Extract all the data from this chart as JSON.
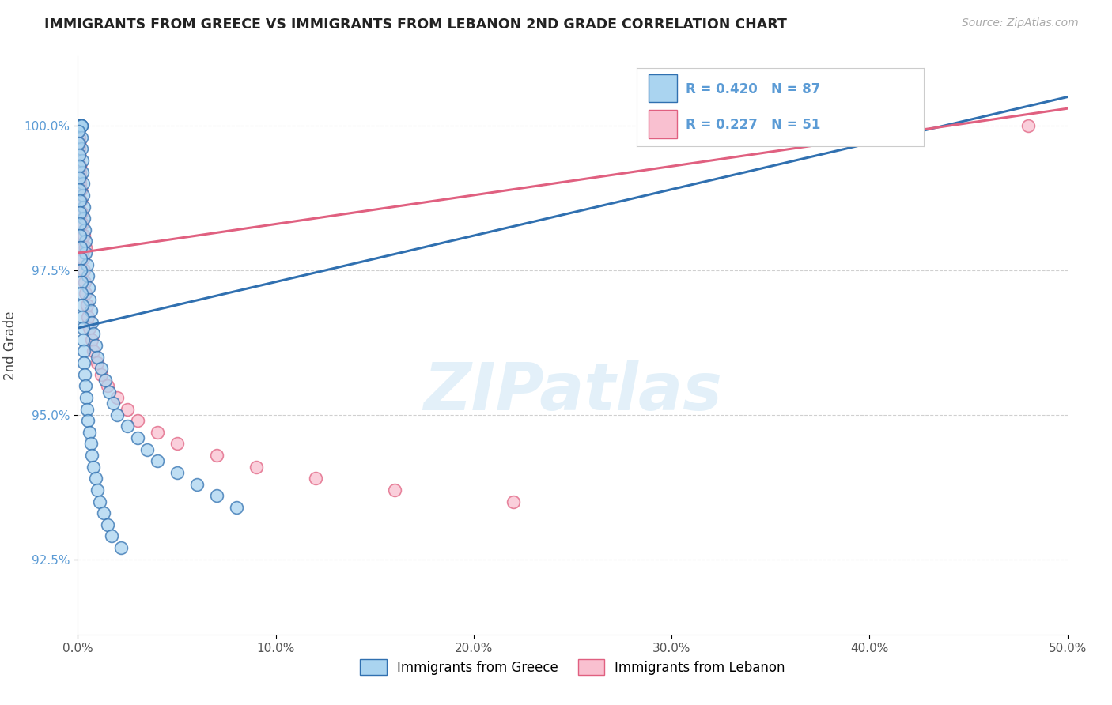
{
  "title": "IMMIGRANTS FROM GREECE VS IMMIGRANTS FROM LEBANON 2ND GRADE CORRELATION CHART",
  "source": "Source: ZipAtlas.com",
  "ylabel": "2nd Grade",
  "x_min": 0.0,
  "x_max": 50.0,
  "y_min": 91.2,
  "y_max": 101.2,
  "x_ticks": [
    0.0,
    10.0,
    20.0,
    30.0,
    40.0,
    50.0
  ],
  "x_tick_labels": [
    "0.0%",
    "10.0%",
    "20.0%",
    "30.0%",
    "40.0%",
    "50.0%"
  ],
  "y_ticks": [
    92.5,
    95.0,
    97.5,
    100.0
  ],
  "y_tick_labels": [
    "92.5%",
    "95.0%",
    "97.5%",
    "100.0%"
  ],
  "color_greece": "#aad4f0",
  "color_lebanon": "#f9c0d0",
  "color_line_greece": "#3070b0",
  "color_line_lebanon": "#e06080",
  "watermark": "ZIPatlas",
  "legend_labels": [
    "Immigrants from Greece",
    "Immigrants from Lebanon"
  ],
  "greece_x": [
    0.02,
    0.03,
    0.04,
    0.05,
    0.06,
    0.07,
    0.08,
    0.09,
    0.1,
    0.11,
    0.12,
    0.13,
    0.14,
    0.15,
    0.16,
    0.17,
    0.18,
    0.19,
    0.2,
    0.22,
    0.24,
    0.26,
    0.28,
    0.3,
    0.32,
    0.35,
    0.38,
    0.4,
    0.45,
    0.5,
    0.55,
    0.6,
    0.65,
    0.7,
    0.8,
    0.9,
    1.0,
    1.2,
    1.4,
    1.6,
    1.8,
    2.0,
    2.5,
    3.0,
    3.5,
    4.0,
    5.0,
    6.0,
    7.0,
    8.0,
    0.03,
    0.04,
    0.05,
    0.06,
    0.07,
    0.08,
    0.09,
    0.1,
    0.11,
    0.12,
    0.13,
    0.14,
    0.15,
    0.17,
    0.19,
    0.21,
    0.23,
    0.25,
    0.27,
    0.29,
    0.31,
    0.34,
    0.37,
    0.41,
    0.46,
    0.52,
    0.58,
    0.65,
    0.72,
    0.8,
    0.89,
    1.0,
    1.1,
    1.3,
    1.5,
    1.7,
    2.2
  ],
  "greece_y": [
    100.0,
    100.0,
    100.0,
    100.0,
    100.0,
    100.0,
    100.0,
    100.0,
    100.0,
    100.0,
    100.0,
    100.0,
    100.0,
    100.0,
    100.0,
    100.0,
    100.0,
    99.8,
    99.6,
    99.4,
    99.2,
    99.0,
    98.8,
    98.6,
    98.4,
    98.2,
    98.0,
    97.8,
    97.6,
    97.4,
    97.2,
    97.0,
    96.8,
    96.6,
    96.4,
    96.2,
    96.0,
    95.8,
    95.6,
    95.4,
    95.2,
    95.0,
    94.8,
    94.6,
    94.4,
    94.2,
    94.0,
    93.8,
    93.6,
    93.4,
    99.9,
    99.7,
    99.5,
    99.3,
    99.1,
    98.9,
    98.7,
    98.5,
    98.3,
    98.1,
    97.9,
    97.7,
    97.5,
    97.3,
    97.1,
    96.9,
    96.7,
    96.5,
    96.3,
    96.1,
    95.9,
    95.7,
    95.5,
    95.3,
    95.1,
    94.9,
    94.7,
    94.5,
    94.3,
    94.1,
    93.9,
    93.7,
    93.5,
    93.3,
    93.1,
    92.9,
    92.7
  ],
  "lebanon_x": [
    0.02,
    0.03,
    0.04,
    0.05,
    0.06,
    0.07,
    0.08,
    0.09,
    0.1,
    0.11,
    0.12,
    0.13,
    0.15,
    0.17,
    0.19,
    0.22,
    0.25,
    0.28,
    0.32,
    0.36,
    0.4,
    0.45,
    0.5,
    0.6,
    0.7,
    0.8,
    1.0,
    1.2,
    1.5,
    2.0,
    2.5,
    3.0,
    4.0,
    5.0,
    7.0,
    9.0,
    12.0,
    16.0,
    22.0,
    48.0,
    0.03,
    0.05,
    0.07,
    0.09,
    0.11,
    0.13,
    0.16,
    0.2,
    0.24,
    0.3,
    0.38
  ],
  "lebanon_y": [
    100.0,
    100.0,
    100.0,
    99.8,
    99.7,
    99.6,
    99.5,
    99.3,
    99.2,
    99.1,
    99.0,
    98.9,
    98.7,
    98.5,
    98.3,
    98.1,
    97.9,
    97.7,
    97.5,
    97.3,
    97.1,
    96.9,
    96.7,
    96.5,
    96.3,
    96.1,
    95.9,
    95.7,
    95.5,
    95.3,
    95.1,
    94.9,
    94.7,
    94.5,
    94.3,
    94.1,
    93.9,
    93.7,
    93.5,
    100.0,
    99.9,
    99.7,
    99.5,
    99.3,
    99.1,
    98.9,
    98.7,
    98.5,
    98.3,
    98.1,
    97.9
  ],
  "greece_trendline_x": [
    0.0,
    50.0
  ],
  "greece_trendline_y": [
    96.5,
    100.5
  ],
  "lebanon_trendline_x": [
    0.0,
    50.0
  ],
  "lebanon_trendline_y": [
    97.8,
    100.3
  ]
}
